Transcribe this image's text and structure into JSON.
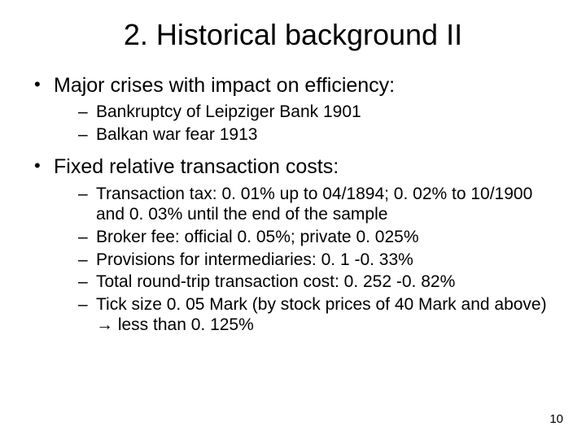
{
  "title": "2. Historical background II",
  "bullets": [
    {
      "text": "Major crises with impact on efficiency:",
      "sub": [
        "Bankruptcy of Leipziger Bank 1901",
        "Balkan war fear 1913"
      ]
    },
    {
      "text": "Fixed relative transaction costs:",
      "sub": [
        "Transaction tax: 0. 01% up to 04/1894; 0. 02% to 10/1900 and 0. 03% until the end of the sample",
        "Broker fee: official 0. 05%; private 0. 025%",
        "Provisions for intermediaries: 0. 1 -0. 33%",
        "Total round-trip transaction cost: 0. 252 -0. 82%",
        "Tick size 0. 05 Mark (by stock prices of 40 Mark and above) → less than 0. 125%"
      ]
    }
  ],
  "page_number": "10"
}
